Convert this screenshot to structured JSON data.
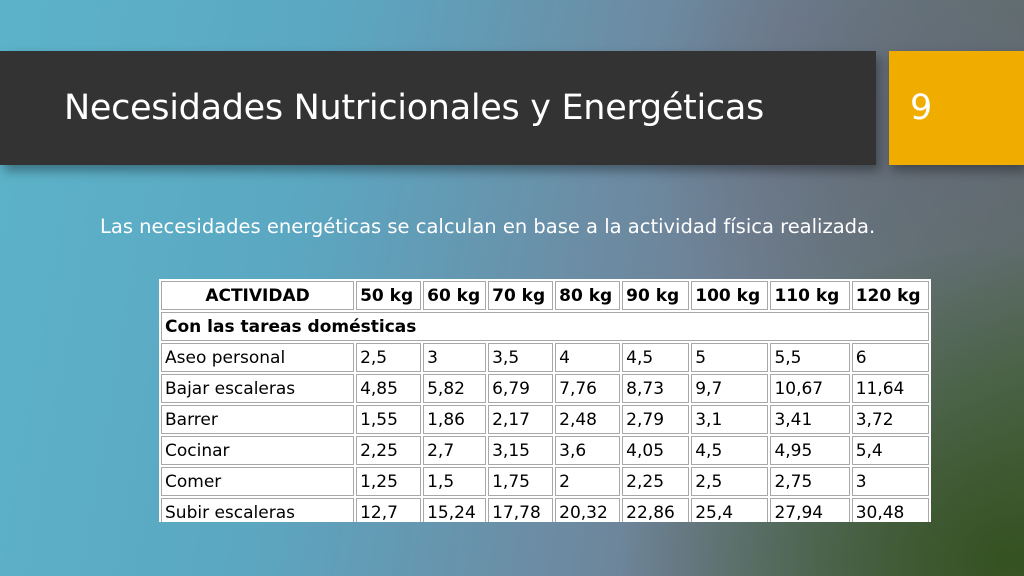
{
  "slide": {
    "title": "Necesidades Nutricionales y Energéticas",
    "number": "9",
    "body_text": "Las necesidades energéticas se calculan en base a la actividad física realizada."
  },
  "table": {
    "headers": [
      "ACTIVIDAD",
      "50 kg",
      "60 kg",
      "70 kg",
      "80 kg",
      "90 kg",
      "100 kg",
      "110 kg",
      "120 kg"
    ],
    "section_label": "Con las tareas domésticas",
    "rows": [
      [
        "Aseo personal",
        "2,5",
        "3",
        "3,5",
        "4",
        "4,5",
        "5",
        "5,5",
        "6"
      ],
      [
        "Bajar escaleras",
        "4,85",
        "5,82",
        "6,79",
        "7,76",
        "8,73",
        "9,7",
        "10,67",
        "11,64"
      ],
      [
        "Barrer",
        "1,55",
        "1,86",
        "2,17",
        "2,48",
        "2,79",
        "3,1",
        "3,41",
        "3,72"
      ],
      [
        "Cocinar",
        "2,25",
        "2,7",
        "3,15",
        "3,6",
        "4,05",
        "4,5",
        "4,95",
        "5,4"
      ],
      [
        "Comer",
        "1,25",
        "1,5",
        "1,75",
        "2",
        "2,25",
        "2,5",
        "2,75",
        "3"
      ],
      [
        "Subir escaleras",
        "12,7",
        "15,24",
        "17,78",
        "20,32",
        "22,86",
        "25,4",
        "27,94",
        "30,48"
      ]
    ]
  },
  "colors": {
    "title_bar": "#333333",
    "number_box": "#f0ad00",
    "text": "#ffffff"
  }
}
